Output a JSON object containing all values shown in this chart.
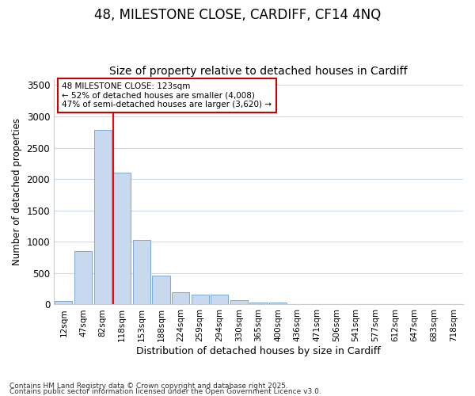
{
  "title1": "48, MILESTONE CLOSE, CARDIFF, CF14 4NQ",
  "title2": "Size of property relative to detached houses in Cardiff",
  "xlabel": "Distribution of detached houses by size in Cardiff",
  "ylabel": "Number of detached properties",
  "categories": [
    "12sqm",
    "47sqm",
    "82sqm",
    "118sqm",
    "153sqm",
    "188sqm",
    "224sqm",
    "259sqm",
    "294sqm",
    "330sqm",
    "365sqm",
    "400sqm",
    "436sqm",
    "471sqm",
    "506sqm",
    "541sqm",
    "577sqm",
    "612sqm",
    "647sqm",
    "683sqm",
    "718sqm"
  ],
  "values": [
    60,
    850,
    2780,
    2100,
    1030,
    460,
    200,
    155,
    155,
    65,
    30,
    30,
    5,
    5,
    2,
    1,
    1,
    0,
    0,
    0,
    0
  ],
  "bar_color": "#c8d8ee",
  "bar_edge_color": "#7aa8d2",
  "annotation_line1": "48 MILESTONE CLOSE: 123sqm",
  "annotation_line2": "← 52% of detached houses are smaller (4,008)",
  "annotation_line3": "47% of semi-detached houses are larger (3,620) →",
  "annotation_box_color": "#ffffff",
  "annotation_box_edge": "#cc0000",
  "red_line_index": 3,
  "ylim": [
    0,
    3600
  ],
  "yticks": [
    0,
    500,
    1000,
    1500,
    2000,
    2500,
    3000,
    3500
  ],
  "footnote1": "Contains HM Land Registry data © Crown copyright and database right 2025.",
  "footnote2": "Contains public sector information licensed under the Open Government Licence v3.0.",
  "bg_color": "#ffffff",
  "plot_bg_color": "#ffffff",
  "grid_color": "#c8d8ee",
  "title1_fontsize": 12,
  "title2_fontsize": 10
}
